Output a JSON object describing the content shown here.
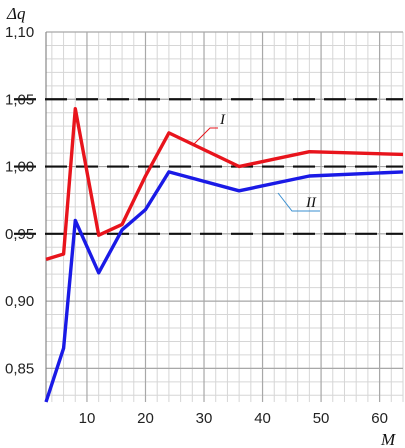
{
  "chart_data": {
    "type": "line",
    "ylabel": "Δq",
    "xlabel": "M",
    "xlim": [
      3,
      64
    ],
    "ylim": [
      0.825,
      1.1
    ],
    "x_ticks": [
      10,
      20,
      30,
      40,
      50,
      60
    ],
    "y_ticks": [
      "0,85",
      "0,90",
      "0,95",
      "1,00",
      "1,05",
      "1,10"
    ],
    "y_tick_values": [
      0.85,
      0.9,
      0.95,
      1.0,
      1.05,
      1.1
    ],
    "grid": "minor grid every 2 on x, every 0.01 on y; major grid at labeled ticks",
    "reference_lines": [
      {
        "y": 1.05,
        "style": "dashed"
      },
      {
        "y": 1.0,
        "style": "dashed"
      },
      {
        "y": 0.95,
        "style": "dashed"
      }
    ],
    "series": [
      {
        "name": "I",
        "color": "#e8141c",
        "x": [
          3,
          6,
          8,
          12,
          16,
          20,
          24,
          36,
          48,
          64
        ],
        "y": [
          0.931,
          0.935,
          1.043,
          0.949,
          0.957,
          0.993,
          1.025,
          1.0,
          1.011,
          1.009
        ]
      },
      {
        "name": "II",
        "color": "#1a1ae6",
        "x": [
          3,
          6,
          8,
          12,
          16,
          20,
          24,
          36,
          48,
          64
        ],
        "y": [
          0.825,
          0.865,
          0.96,
          0.921,
          0.953,
          0.968,
          0.996,
          0.982,
          0.993,
          0.996
        ]
      }
    ],
    "series_tags": [
      {
        "text": "I",
        "series": "I"
      },
      {
        "text": "II",
        "series": "II"
      }
    ]
  }
}
